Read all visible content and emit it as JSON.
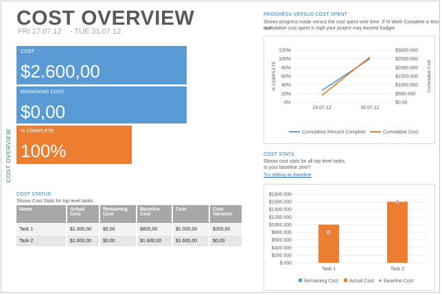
{
  "side_label": "COST OVERVIEW",
  "title": "COST OVERVIEW",
  "date_start": "FRI 27.07.12",
  "date_sep": "- TUE 31.07.12",
  "tiles": {
    "cost_label": "COST",
    "cost_value": "$2.600,00",
    "remaining_label": "REMAINING COST",
    "remaining_value": "$0,00",
    "complete_label": "% COMPLETE",
    "complete_value": "100%"
  },
  "cost_status": {
    "title": "COST STATUS",
    "subtitle": "Shows Cost Stats for top level tasks",
    "headers": [
      "Name",
      "Actual Cost",
      "Remaining Cost",
      "Baseline Cost",
      "Cost",
      "Cost Variance"
    ],
    "rows": [
      [
        "Task 1",
        "$1.000,00",
        "$0,00",
        "$800,00",
        "$1.000,00",
        "$200,00"
      ],
      [
        "Task 2",
        "$1.600,00",
        "$0,00",
        "$1.600,00",
        "$1.600,00",
        "$0,00"
      ]
    ]
  },
  "progress": {
    "title": "PROGRESS VERSUS COST SPENT",
    "subtitle_1": "Shows progress made versus the cost spent over time. If % Work Complete is less and",
    "subtitle_2": "cumulative cost spent is high your project may exceed budget."
  },
  "cost_stats": {
    "title": "COST STATS",
    "subtitle_1": "Shows cost stats for all top level tasks.",
    "subtitle_2": "Is your baseline zero?",
    "link": "Try setting as baseline"
  },
  "colors": {
    "blue": "#5b9bd5",
    "orange": "#ed7d31",
    "gray": "#a5a5a5"
  },
  "chart_data": [
    {
      "type": "line",
      "x": [
        "23.07.12",
        "30.07.12"
      ],
      "ylabel": "% COMPLETE",
      "y2label": "Cumulative Cost",
      "yticks": [
        "0%",
        "20%",
        "40%",
        "60%",
        "80%",
        "100%",
        "120%"
      ],
      "y2ticks": [
        "$0.00",
        "$500.000",
        "$1000.000",
        "$1500.000",
        "$2000.000",
        "$2500.000",
        "$3000.000"
      ],
      "ylim": [
        0,
        1.2
      ],
      "y2lim": [
        0,
        3000
      ],
      "series": [
        {
          "name": "Cumulative Percent Complete",
          "axis": "left",
          "color": "#5b9bd5",
          "values": [
            0.27,
            1.0
          ]
        },
        {
          "name": "Cumulative Cost",
          "axis": "right",
          "color": "#ed7d31",
          "values": [
            400,
            2600
          ]
        }
      ]
    },
    {
      "type": "bar",
      "categories": [
        "Task 1",
        "Task 2"
      ],
      "yticks": [
        "$.000",
        "$200.000",
        "$400.000",
        "$600.000",
        "$800.000",
        "$1000.000",
        "$1200.000",
        "$1400.000",
        "$1600.000",
        "$1800.000"
      ],
      "ylim": [
        0,
        1800
      ],
      "series": [
        {
          "name": "Remaining Cost",
          "color": "#5b9bd5",
          "values": [
            0,
            0
          ]
        },
        {
          "name": "Actual Cost",
          "color": "#ed7d31",
          "values": [
            1000,
            1600
          ]
        },
        {
          "name": "Baseline Cost",
          "color": "#a5a5a5",
          "marker": "dot",
          "values": [
            800,
            1600
          ]
        }
      ]
    }
  ]
}
